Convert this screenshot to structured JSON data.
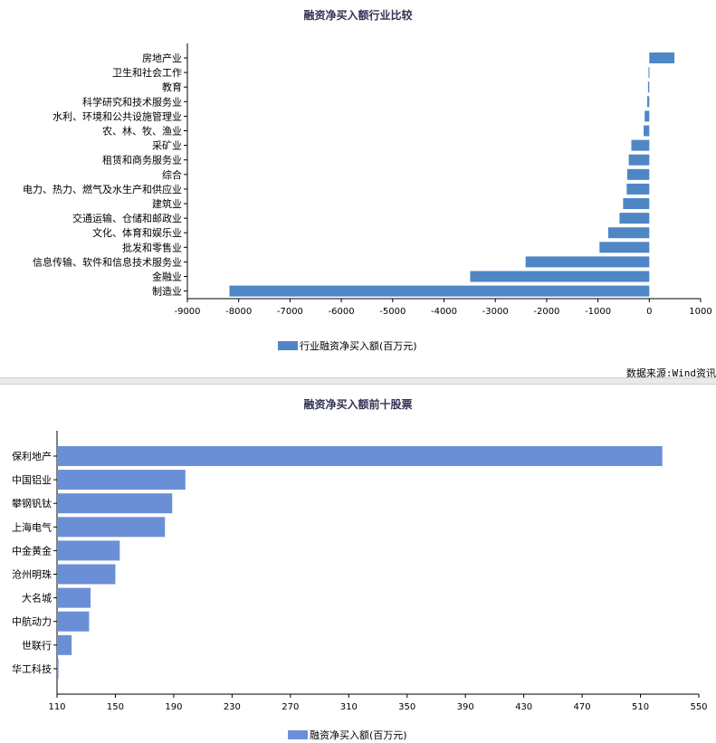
{
  "source_label": "数据来源:Wind资讯",
  "chart_data": [
    {
      "type": "bar",
      "orientation": "horizontal",
      "title": "融资净买入额行业比较",
      "categories": [
        "房地产业",
        "卫生和社会工作",
        "教育",
        "科学研究和技术服务业",
        "水利、环境和公共设施管理业",
        "农、林、牧、渔业",
        "采矿业",
        "租赁和商务服务业",
        "综合",
        "电力、热力、燃气及水生产和供应业",
        "建筑业",
        "交通运输、仓储和邮政业",
        "文化、体育和娱乐业",
        "批发和零售业",
        "信息传输、软件和信息技术服务业",
        "金融业",
        "制造业"
      ],
      "series": [
        {
          "name": "行业融资净买入额(百万元)",
          "values": [
            490,
            -15,
            -25,
            -40,
            -90,
            -110,
            -350,
            -400,
            -430,
            -440,
            -510,
            -580,
            -800,
            -970,
            -2410,
            -3490,
            -8180
          ]
        }
      ],
      "xlim": [
        -9000,
        1000
      ],
      "xticks": [
        "-9000",
        "-8000",
        "-7000",
        "-6000",
        "-5000",
        "-4000",
        "-3000",
        "-2000",
        "-1000",
        "0",
        "1000"
      ],
      "color": "#4f86c6",
      "legend_position": "bottom"
    },
    {
      "type": "bar",
      "orientation": "horizontal",
      "title": "融资净买入额前十股票",
      "categories": [
        "保利地产",
        "中国铝业",
        "攀钢钒钛",
        "上海电气",
        "中金黄金",
        "沧州明珠",
        "大名城",
        "中航动力",
        "世联行",
        "华工科技"
      ],
      "series": [
        {
          "name": "融资净买入额(百万元)",
          "values": [
            525,
            198,
            189,
            184,
            153,
            150,
            133,
            132,
            120,
            111
          ]
        }
      ],
      "xlim": [
        110,
        550
      ],
      "xticks": [
        "110",
        "150",
        "190",
        "230",
        "270",
        "310",
        "350",
        "390",
        "430",
        "470",
        "510",
        "550"
      ],
      "color": "#6a8fd6",
      "legend_position": "bottom"
    }
  ]
}
